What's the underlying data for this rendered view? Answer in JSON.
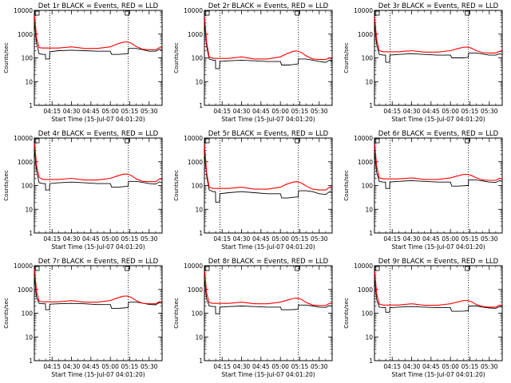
{
  "chart_data": {
    "type": "line",
    "layout": "3x3 grid of log-scale time series panels",
    "x_ticks": [
      "04:15",
      "04:30",
      "04:45",
      "05:00",
      "05:15",
      "05:30"
    ],
    "x_tick_minutes": [
      15,
      30,
      45,
      60,
      75,
      90
    ],
    "xlim_minutes": [
      1.3,
      100
    ],
    "xlabel": "Start Time (15-Jul-07 04:01:20)",
    "ylabel": "Counts/sec",
    "y_scale": "log",
    "ylim": [
      1,
      10000
    ],
    "y_ticks": [
      "1",
      "10",
      "100",
      "1000",
      "10000"
    ],
    "y_tick_values": [
      1,
      10,
      100,
      1000,
      10000
    ],
    "vlines_minutes": [
      13.3,
      73.9
    ],
    "colors": {
      "events": "#000000",
      "lld": "#ff0000"
    },
    "panels": [
      {
        "title": "Det 1r BLACK = Events, RED = LLD",
        "series": [
          {
            "name": "Events",
            "x": [
              1.5,
              3,
              5,
              8,
              9.9,
              10,
              13,
              13.2,
              20,
              30,
              40,
              50,
              60,
              61,
              66,
              70,
              73,
              73.8,
              74,
              80,
              85,
              90,
              95,
              98,
              100
            ],
            "y": [
              3000,
              400,
              150,
              140,
              140,
              90,
              90,
              180,
              200,
              210,
              200,
              190,
              190,
              140,
              140,
              145,
              150,
              150,
              250,
              250,
              220,
              190,
              190,
              230,
              200
            ]
          },
          {
            "name": "LLD",
            "x": [
              1.5,
              3,
              5,
              8,
              10,
              20,
              30,
              40,
              50,
              60,
              65,
              70,
              73,
              76,
              80,
              85,
              90,
              95,
              98,
              100
            ],
            "y": [
              6000,
              700,
              270,
              260,
              260,
              260,
              290,
              250,
              250,
              290,
              380,
              460,
              470,
              420,
              300,
              230,
              220,
              220,
              270,
              260
            ]
          }
        ]
      },
      {
        "title": "Det 2r BLACK = Events, RED = LLD",
        "series": [
          {
            "name": "Events",
            "x": [
              1.5,
              3,
              5,
              8,
              9.9,
              10,
              13,
              13.2,
              20,
              30,
              40,
              50,
              60,
              61,
              66,
              70,
              73,
              73.8,
              74,
              80,
              85,
              90,
              95,
              98,
              100
            ],
            "y": [
              2500,
              300,
              90,
              80,
              80,
              35,
              35,
              70,
              75,
              80,
              75,
              70,
              70,
              50,
              50,
              52,
              55,
              55,
              90,
              90,
              80,
              70,
              65,
              80,
              70
            ]
          },
          {
            "name": "LLD",
            "x": [
              1.5,
              3,
              5,
              8,
              10,
              20,
              30,
              40,
              50,
              60,
              65,
              70,
              73,
              76,
              80,
              85,
              90,
              95,
              98,
              100
            ],
            "y": [
              5000,
              450,
              110,
              95,
              95,
              95,
              110,
              90,
              90,
              110,
              150,
              190,
              195,
              170,
              120,
              90,
              85,
              85,
              100,
              95
            ]
          }
        ]
      },
      {
        "title": "Det 3r BLACK = Events, RED = LLD",
        "series": [
          {
            "name": "Events",
            "x": [
              1.5,
              3,
              5,
              8,
              9.9,
              10,
              13,
              13.2,
              20,
              30,
              40,
              50,
              60,
              61,
              66,
              70,
              73,
              73.8,
              74,
              80,
              85,
              90,
              95,
              98,
              100
            ],
            "y": [
              2500,
              350,
              140,
              130,
              130,
              65,
              65,
              130,
              140,
              150,
              140,
              130,
              130,
              100,
              100,
              100,
              105,
              105,
              160,
              160,
              145,
              130,
              130,
              150,
              140
            ]
          },
          {
            "name": "LLD",
            "x": [
              1.5,
              3,
              5,
              8,
              10,
              20,
              30,
              40,
              50,
              60,
              65,
              70,
              73,
              76,
              80,
              85,
              90,
              95,
              98,
              100
            ],
            "y": [
              5000,
              600,
              200,
              180,
              180,
              180,
              200,
              175,
              175,
              200,
              240,
              280,
              285,
              260,
              200,
              165,
              160,
              160,
              190,
              185
            ]
          }
        ]
      },
      {
        "title": "Det 4r BLACK = Events, RED = LLD",
        "series": [
          {
            "name": "Events",
            "x": [
              1.5,
              3,
              5,
              8,
              9.9,
              10,
              13,
              13.2,
              20,
              30,
              40,
              50,
              60,
              61,
              66,
              70,
              73,
              73.8,
              74,
              80,
              85,
              90,
              95,
              98,
              100
            ],
            "y": [
              3000,
              400,
              130,
              120,
              120,
              65,
              65,
              120,
              130,
              140,
              130,
              120,
              120,
              85,
              85,
              90,
              92,
              92,
              150,
              150,
              135,
              120,
              115,
              145,
              130
            ]
          },
          {
            "name": "LLD",
            "x": [
              1.5,
              3,
              5,
              8,
              10,
              20,
              30,
              40,
              50,
              60,
              65,
              70,
              73,
              76,
              80,
              85,
              90,
              95,
              98,
              100
            ],
            "y": [
              6000,
              700,
              220,
              180,
              180,
              180,
              200,
              170,
              170,
              200,
              250,
              300,
              305,
              270,
              190,
              150,
              145,
              145,
              190,
              180
            ]
          }
        ]
      },
      {
        "title": "Det 5r BLACK = Events, RED = LLD",
        "series": [
          {
            "name": "Events",
            "x": [
              1.5,
              3,
              5,
              8,
              9.9,
              10,
              13,
              13.2,
              20,
              30,
              40,
              50,
              60,
              61,
              66,
              70,
              73,
              73.8,
              74,
              80,
              85,
              90,
              95,
              98,
              100
            ],
            "y": [
              2000,
              250,
              65,
              55,
              55,
              20,
              20,
              45,
              50,
              55,
              50,
              45,
              45,
              30,
              30,
              32,
              33,
              33,
              60,
              60,
              55,
              45,
              42,
              55,
              50
            ]
          },
          {
            "name": "LLD",
            "x": [
              1.5,
              3,
              5,
              8,
              10,
              20,
              30,
              40,
              50,
              60,
              65,
              70,
              73,
              76,
              80,
              85,
              90,
              95,
              98,
              100
            ],
            "y": [
              5000,
              350,
              85,
              75,
              75,
              75,
              85,
              70,
              70,
              85,
              115,
              140,
              145,
              130,
              95,
              70,
              65,
              65,
              85,
              80
            ]
          }
        ]
      },
      {
        "title": "Det 6r BLACK = Events, RED = LLD",
        "series": [
          {
            "name": "Events",
            "x": [
              1.5,
              3,
              5,
              8,
              9.9,
              10,
              13,
              13.2,
              20,
              30,
              40,
              50,
              60,
              61,
              66,
              70,
              73,
              73.8,
              74,
              80,
              85,
              90,
              95,
              98,
              100
            ],
            "y": [
              2500,
              350,
              150,
              140,
              140,
              75,
              75,
              140,
              150,
              160,
              150,
              140,
              140,
              95,
              95,
              98,
              100,
              100,
              170,
              170,
              155,
              140,
              135,
              160,
              150
            ]
          },
          {
            "name": "LLD",
            "x": [
              1.5,
              3,
              5,
              8,
              10,
              20,
              30,
              40,
              50,
              60,
              65,
              70,
              73,
              76,
              80,
              85,
              90,
              95,
              98,
              100
            ],
            "y": [
              5500,
              650,
              210,
              190,
              190,
              190,
              210,
              180,
              180,
              210,
              250,
              290,
              295,
              270,
              210,
              170,
              165,
              165,
              200,
              190
            ]
          }
        ]
      },
      {
        "title": "Det 7r BLACK = Events, RED = LLD",
        "series": [
          {
            "name": "Events",
            "x": [
              1.5,
              3,
              5,
              8,
              9.9,
              10,
              13,
              13.2,
              20,
              30,
              40,
              50,
              60,
              61,
              66,
              70,
              73,
              73.8,
              74,
              80,
              85,
              90,
              95,
              98,
              100
            ],
            "y": [
              3000,
              450,
              260,
              250,
              250,
              140,
              140,
              240,
              250,
              260,
              250,
              230,
              230,
              160,
              160,
              165,
              170,
              170,
              290,
              290,
              265,
              235,
              225,
              280,
              260
            ]
          },
          {
            "name": "LLD",
            "x": [
              1.5,
              3,
              5,
              8,
              10,
              20,
              30,
              40,
              50,
              60,
              65,
              70,
              73,
              76,
              80,
              85,
              90,
              95,
              98,
              100
            ],
            "y": [
              7000,
              800,
              320,
              300,
              300,
              300,
              340,
              290,
              290,
              340,
              430,
              520,
              530,
              470,
              340,
              260,
              250,
              250,
              310,
              300
            ]
          }
        ]
      },
      {
        "title": "Det 8r BLACK = Events, RED = LLD",
        "series": [
          {
            "name": "Events",
            "x": [
              1.5,
              3,
              5,
              8,
              9.9,
              10,
              13,
              13.2,
              20,
              30,
              40,
              50,
              60,
              61,
              66,
              70,
              73,
              73.8,
              74,
              80,
              85,
              90,
              95,
              98,
              100
            ],
            "y": [
              2500,
              400,
              200,
              190,
              190,
              95,
              95,
              180,
              190,
              200,
              190,
              180,
              180,
              140,
              140,
              142,
              145,
              145,
              220,
              220,
              200,
              180,
              175,
              210,
              195
            ]
          },
          {
            "name": "LLD",
            "x": [
              1.5,
              3,
              5,
              8,
              10,
              20,
              30,
              40,
              50,
              60,
              65,
              70,
              73,
              76,
              80,
              85,
              90,
              95,
              98,
              100
            ],
            "y": [
              6000,
              700,
              280,
              260,
              260,
              260,
              290,
              250,
              250,
              290,
              350,
              420,
              430,
              390,
              280,
              220,
              210,
              210,
              260,
              250
            ]
          }
        ]
      },
      {
        "title": "Det 9r BLACK = Events, RED = LLD",
        "series": [
          {
            "name": "Events",
            "x": [
              1.5,
              3,
              5,
              8,
              9.9,
              10,
              13,
              13.2,
              20,
              30,
              40,
              50,
              60,
              61,
              66,
              70,
              73,
              73.8,
              74,
              80,
              85,
              90,
              95,
              98,
              100
            ],
            "y": [
              2500,
              380,
              180,
              170,
              170,
              110,
              110,
              170,
              180,
              190,
              180,
              170,
              170,
              120,
              120,
              122,
              125,
              125,
              200,
              200,
              180,
              165,
              160,
              190,
              180
            ]
          },
          {
            "name": "LLD",
            "x": [
              1.5,
              3,
              5,
              8,
              10,
              20,
              30,
              40,
              50,
              60,
              65,
              70,
              73,
              76,
              80,
              85,
              90,
              95,
              98,
              100
            ],
            "y": [
              6000,
              650,
              240,
              220,
              220,
              220,
              250,
              215,
              215,
              250,
              290,
              340,
              345,
              310,
              230,
              190,
              180,
              180,
              220,
              210
            ]
          }
        ]
      }
    ]
  }
}
